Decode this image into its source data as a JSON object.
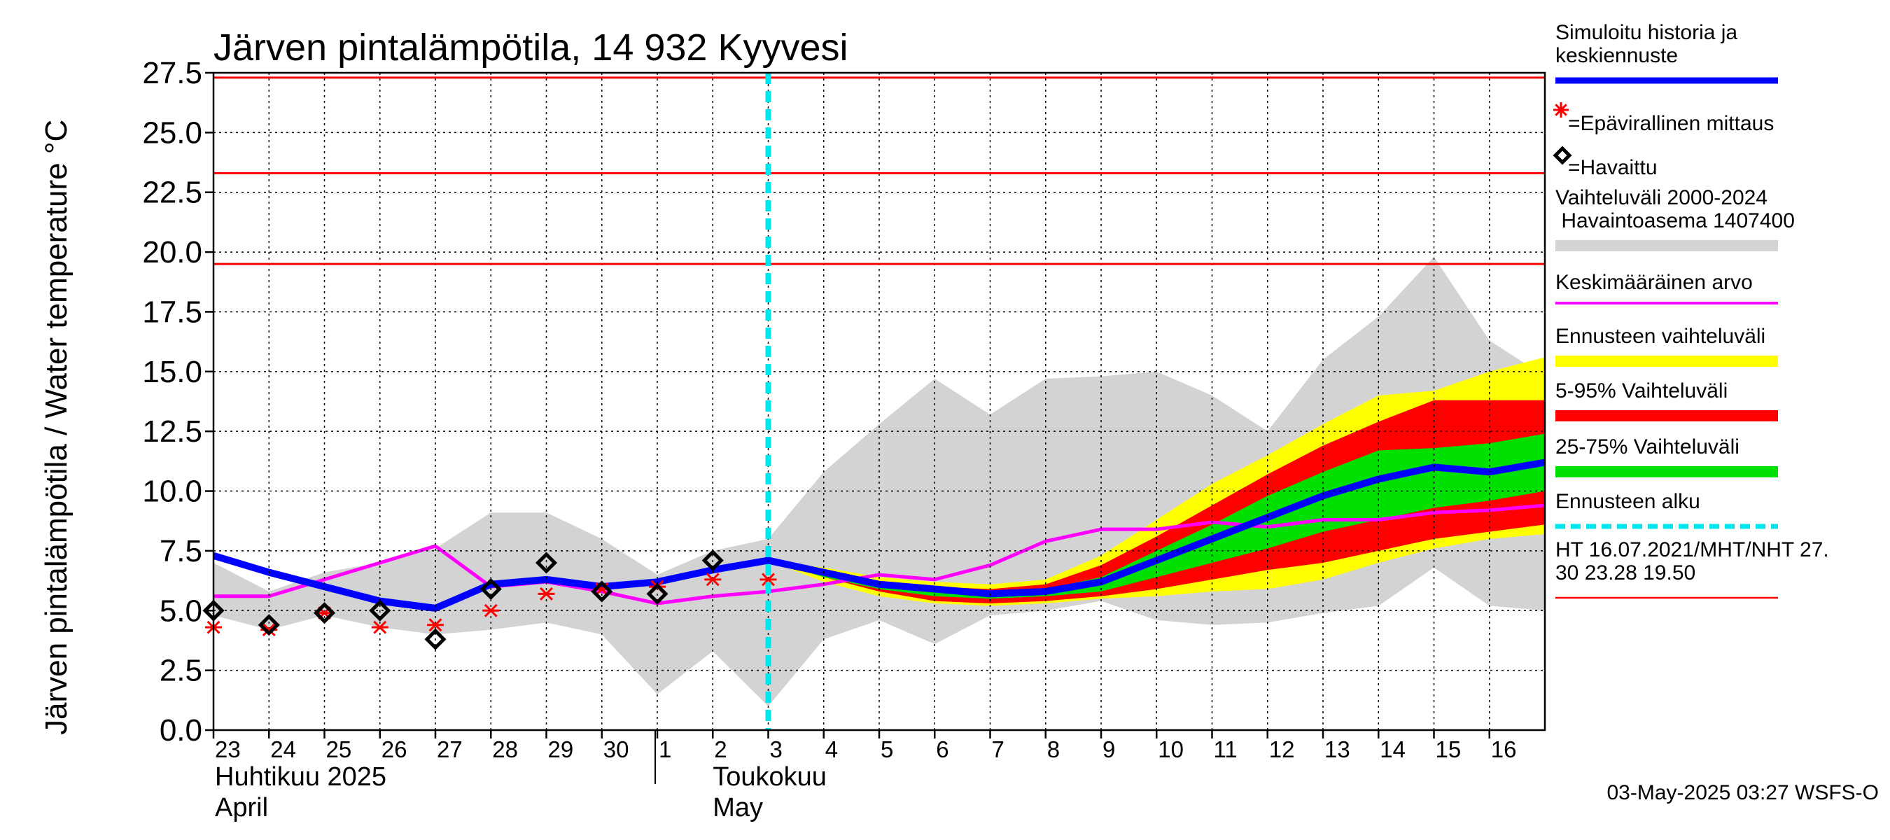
{
  "chart_data": {
    "type": "line",
    "title": "Järven pintalämpötila, 14 932 Kyyvesi",
    "ylabel": "Järven pintalämpötila / Water temperature °C",
    "ylim": [
      0,
      27.5
    ],
    "yticks": [
      "0.0",
      "2.5",
      "5.0",
      "7.5",
      "10.0",
      "12.5",
      "15.0",
      "17.5",
      "20.0",
      "22.5",
      "25.0",
      "27.5"
    ],
    "x_day_labels": [
      "23",
      "24",
      "25",
      "26",
      "27",
      "28",
      "29",
      "30",
      "1",
      "2",
      "3",
      "4",
      "5",
      "6",
      "7",
      "8",
      "9",
      "10",
      "11",
      "12",
      "13",
      "14",
      "15",
      "16"
    ],
    "x_dates": [
      "2025-04-23",
      "2025-04-24",
      "2025-04-25",
      "2025-04-26",
      "2025-04-27",
      "2025-04-28",
      "2025-04-29",
      "2025-04-30",
      "2025-05-01",
      "2025-05-02",
      "2025-05-03",
      "2025-05-04",
      "2025-05-05",
      "2025-05-06",
      "2025-05-07",
      "2025-05-08",
      "2025-05-09",
      "2025-05-10",
      "2025-05-11",
      "2025-05-12",
      "2025-05-13",
      "2025-05-14",
      "2025-05-15",
      "2025-05-16"
    ],
    "x_end": "2025-05-17",
    "month_labels": [
      {
        "date": "2025-04-23",
        "line1": "Huhtikuu  2025",
        "line2": "April"
      },
      {
        "date": "2025-05-02",
        "line1": "Toukokuu",
        "line2": "May"
      }
    ],
    "forecast_start": "2025-05-03",
    "hline_values": [
      27.3,
      23.3,
      19.5
    ],
    "hline_label": "HT 16.07.2021/MHT/NHT 27.30 23.28 19.50",
    "grid": true,
    "legend_position": "right",
    "series": [
      {
        "name": "Vaihteluväli 2000-2024 Havaintoasema 1407400",
        "kind": "band",
        "color": "#d3d3d3",
        "x": [
          "2025-04-23",
          "2025-04-24",
          "2025-04-25",
          "2025-04-26",
          "2025-04-27",
          "2025-04-28",
          "2025-04-29",
          "2025-04-30",
          "2025-05-01",
          "2025-05-02",
          "2025-05-03",
          "2025-05-04",
          "2025-05-05",
          "2025-05-06",
          "2025-05-07",
          "2025-05-08",
          "2025-05-09",
          "2025-05-10",
          "2025-05-11",
          "2025-05-12",
          "2025-05-13",
          "2025-05-14",
          "2025-05-15",
          "2025-05-16",
          "2025-05-17"
        ],
        "upper": [
          7.0,
          5.8,
          6.6,
          7.0,
          7.6,
          9.1,
          9.1,
          8.0,
          6.5,
          7.5,
          8.0,
          10.8,
          12.8,
          14.7,
          13.2,
          14.7,
          14.8,
          15.0,
          14.0,
          12.5,
          15.5,
          17.3,
          19.8,
          16.3,
          14.8
        ],
        "lower": [
          4.8,
          4.2,
          4.8,
          4.3,
          4.0,
          4.2,
          4.5,
          4.0,
          1.5,
          3.3,
          1.0,
          3.8,
          4.6,
          3.6,
          4.8,
          5.0,
          5.4,
          4.6,
          4.4,
          4.5,
          4.9,
          5.2,
          6.8,
          5.2,
          5.0
        ]
      },
      {
        "name": "Ennusteen vaihteluväli",
        "kind": "band",
        "color": "#ffff00",
        "x": [
          "2025-05-03",
          "2025-05-04",
          "2025-05-05",
          "2025-05-06",
          "2025-05-07",
          "2025-05-08",
          "2025-05-09",
          "2025-05-10",
          "2025-05-11",
          "2025-05-12",
          "2025-05-13",
          "2025-05-14",
          "2025-05-15",
          "2025-05-16",
          "2025-05-17"
        ],
        "upper": [
          7.1,
          6.8,
          6.4,
          6.2,
          6.1,
          6.3,
          7.3,
          8.8,
          10.3,
          11.5,
          12.8,
          14.0,
          14.2,
          15.0,
          15.6
        ],
        "lower": [
          7.1,
          6.2,
          5.6,
          5.3,
          5.2,
          5.3,
          5.5,
          5.6,
          5.8,
          5.9,
          6.3,
          7.0,
          7.6,
          8.0,
          8.2
        ]
      },
      {
        "name": "5-95% Vaihteluväli",
        "kind": "band",
        "color": "#ff0000",
        "x": [
          "2025-05-03",
          "2025-05-04",
          "2025-05-05",
          "2025-05-06",
          "2025-05-07",
          "2025-05-08",
          "2025-05-09",
          "2025-05-10",
          "2025-05-11",
          "2025-05-12",
          "2025-05-13",
          "2025-05-14",
          "2025-05-15",
          "2025-05-16",
          "2025-05-17"
        ],
        "upper": [
          7.1,
          6.6,
          6.2,
          6.0,
          5.9,
          6.1,
          6.9,
          8.1,
          9.4,
          10.7,
          11.9,
          12.9,
          13.8,
          13.8,
          13.8
        ],
        "lower": [
          7.1,
          6.4,
          5.8,
          5.4,
          5.3,
          5.4,
          5.6,
          5.9,
          6.3,
          6.7,
          7.0,
          7.5,
          8.0,
          8.3,
          8.6
        ]
      },
      {
        "name": "25-75% Vaihteluväli",
        "kind": "band",
        "color": "#00e000",
        "x": [
          "2025-05-03",
          "2025-05-04",
          "2025-05-05",
          "2025-05-06",
          "2025-05-07",
          "2025-05-08",
          "2025-05-09",
          "2025-05-10",
          "2025-05-11",
          "2025-05-12",
          "2025-05-13",
          "2025-05-14",
          "2025-05-15",
          "2025-05-16",
          "2025-05-17"
        ],
        "upper": [
          7.1,
          6.5,
          6.1,
          5.9,
          5.8,
          5.9,
          6.4,
          7.5,
          8.6,
          9.8,
          10.8,
          11.7,
          11.8,
          12.0,
          12.4
        ],
        "lower": [
          7.1,
          6.4,
          5.9,
          5.6,
          5.5,
          5.6,
          5.8,
          6.4,
          7.0,
          7.6,
          8.3,
          8.8,
          9.3,
          9.6,
          10.0
        ]
      },
      {
        "name": "Keskimääräinen arvo",
        "kind": "line",
        "color": "#ff00ff",
        "x": [
          "2025-04-23",
          "2025-04-24",
          "2025-04-25",
          "2025-04-26",
          "2025-04-27",
          "2025-04-28",
          "2025-04-29",
          "2025-04-30",
          "2025-05-01",
          "2025-05-02",
          "2025-05-03",
          "2025-05-04",
          "2025-05-05",
          "2025-05-06",
          "2025-05-07",
          "2025-05-08",
          "2025-05-09",
          "2025-05-10",
          "2025-05-11",
          "2025-05-12",
          "2025-05-13",
          "2025-05-14",
          "2025-05-15",
          "2025-05-16",
          "2025-05-17"
        ],
        "values": [
          5.6,
          5.6,
          6.3,
          7.0,
          7.7,
          6.0,
          6.2,
          5.8,
          5.3,
          5.6,
          5.8,
          6.1,
          6.5,
          6.3,
          6.9,
          7.9,
          8.4,
          8.4,
          8.7,
          8.5,
          8.8,
          8.8,
          9.1,
          9.2,
          9.4
        ]
      },
      {
        "name": "Simuloitu historia ja keskiennuste",
        "kind": "line",
        "color": "#0000ff",
        "x": [
          "2025-04-23",
          "2025-04-24",
          "2025-04-25",
          "2025-04-26",
          "2025-04-27",
          "2025-04-28",
          "2025-04-29",
          "2025-04-30",
          "2025-05-01",
          "2025-05-02",
          "2025-05-03",
          "2025-05-04",
          "2025-05-05",
          "2025-05-06",
          "2025-05-07",
          "2025-05-08",
          "2025-05-09",
          "2025-05-10",
          "2025-05-11",
          "2025-05-12",
          "2025-05-13",
          "2025-05-14",
          "2025-05-15",
          "2025-05-16",
          "2025-05-17"
        ],
        "values": [
          7.3,
          6.6,
          6.0,
          5.4,
          5.1,
          6.1,
          6.3,
          6.0,
          6.2,
          6.7,
          7.1,
          6.6,
          6.1,
          5.9,
          5.7,
          5.8,
          6.2,
          7.1,
          8.0,
          8.9,
          9.8,
          10.5,
          11.0,
          10.8,
          11.2
        ]
      },
      {
        "name": "=Epävirallinen mittaus",
        "kind": "marker",
        "marker": "asterisk",
        "color": "#ff0000",
        "x": [
          "2025-04-23",
          "2025-04-24",
          "2025-04-25",
          "2025-04-26",
          "2025-04-27",
          "2025-04-28",
          "2025-04-29",
          "2025-04-30",
          "2025-05-01",
          "2025-05-02",
          "2025-05-03"
        ],
        "values": [
          4.3,
          4.2,
          4.9,
          4.3,
          4.4,
          5.0,
          5.7,
          5.9,
          6.0,
          6.3,
          6.3
        ]
      },
      {
        "name": "=Havaittu",
        "kind": "marker",
        "marker": "diamond",
        "color": "#000000",
        "x": [
          "2025-04-23",
          "2025-04-24",
          "2025-04-25",
          "2025-04-26",
          "2025-04-27",
          "2025-04-28",
          "2025-04-29",
          "2025-04-30",
          "2025-05-01",
          "2025-05-02"
        ],
        "values": [
          5.0,
          4.4,
          4.9,
          5.0,
          3.8,
          5.9,
          7.0,
          5.8,
          5.7,
          7.1
        ]
      }
    ]
  },
  "legend": [
    {
      "label": "Simuloitu historia ja\nkeskiennuste",
      "swatch": "line",
      "color": "#0000ff"
    },
    {
      "label": "=Epävirallinen mittaus",
      "swatch": "asterisk",
      "color": "#ff0000"
    },
    {
      "label": "=Havaittu",
      "swatch": "diamond",
      "color": "#000000"
    },
    {
      "label": "Vaihteluväli 2000-2024\n Havaintoasema 1407400",
      "swatch": "band",
      "color": "#d3d3d3"
    },
    {
      "label": "Keskimääräinen arvo",
      "swatch": "thin",
      "color": "#ff00ff"
    },
    {
      "label": "Ennusteen vaihteluväli",
      "swatch": "band",
      "color": "#ffff00"
    },
    {
      "label": "5-95% Vaihteluväli",
      "swatch": "band",
      "color": "#ff0000"
    },
    {
      "label": "25-75% Vaihteluväli",
      "swatch": "band",
      "color": "#00e000"
    },
    {
      "label": "Ennusteen alku",
      "swatch": "dashed",
      "color": "#00e5ee"
    },
    {
      "label": "HT 16.07.2021/MHT/NHT 27.\n30 23.28 19.50",
      "swatch": "thinline",
      "color": "#ff0000"
    }
  ],
  "footer": "03-May-2025 03:27 WSFS-O"
}
